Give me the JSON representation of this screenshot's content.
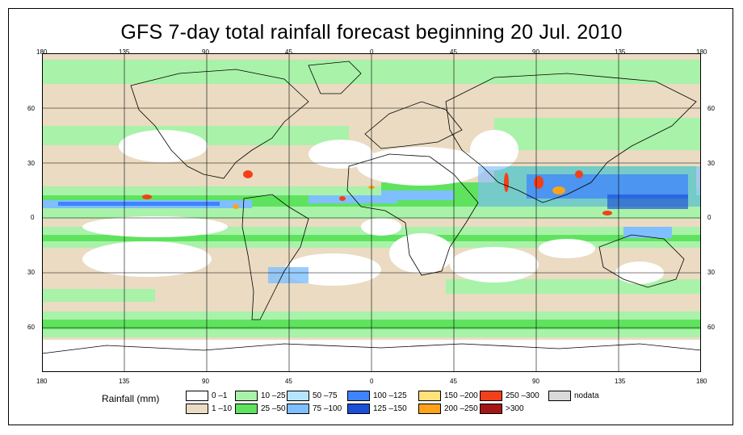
{
  "title": "GFS 7-day total rainfall forecast beginning 20 Jul. 2010",
  "longitude_ticks": [
    "180",
    "135",
    "90",
    "45",
    "0",
    "45",
    "90",
    "135",
    "180"
  ],
  "latitude_ticks": [
    "60",
    "30",
    "0",
    "30",
    "60"
  ],
  "legend": {
    "label": "Rainfall (mm)",
    "items": [
      {
        "label": "0 –1",
        "color": "#ffffff"
      },
      {
        "label": "1 –10",
        "color": "#eadbc2"
      },
      {
        "label": "10 –25",
        "color": "#a9f2a9"
      },
      {
        "label": "25 –50",
        "color": "#5fe35f"
      },
      {
        "label": "50 –75",
        "color": "#b6e6ff"
      },
      {
        "label": "75 –100",
        "color": "#7fbfff"
      },
      {
        "label": "100 –125",
        "color": "#3f83ff"
      },
      {
        "label": "125 –150",
        "color": "#1b4fd6"
      },
      {
        "label": "150 –200",
        "color": "#ffe27a"
      },
      {
        "label": "200 –250",
        "color": "#ffa31a"
      },
      {
        "label": "250 –300",
        "color": "#f2401b"
      },
      {
        "label": ">300",
        "color": "#a41616"
      },
      {
        "label": "nodata",
        "color": "#d9d9d9"
      }
    ]
  },
  "colors": {
    "dry": "#ffffff",
    "light": "#eadbc2",
    "moderate": "#a9f2a9",
    "heavy": "#5fe35f",
    "band_light_blue": "#7fbfff",
    "band_blue": "#3f83ff",
    "band_dark_blue": "#1b4fd6",
    "extreme_red": "#f2401b",
    "extreme_orange": "#ffa31a",
    "coastline": "#000000",
    "gridline": "#000000"
  }
}
